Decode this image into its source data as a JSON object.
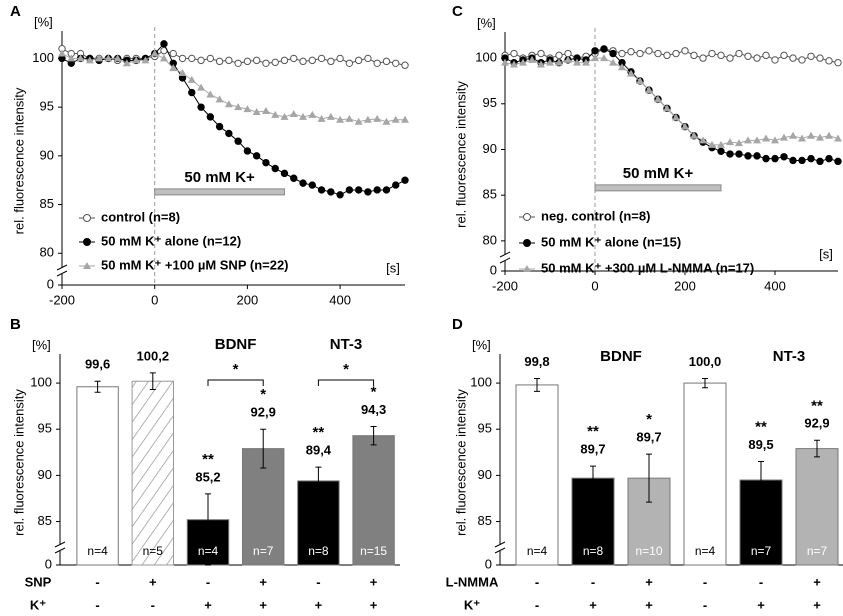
{
  "chart_data": [
    {
      "type": "line",
      "panel": "A",
      "y_label": "rel. fluorescence intensity",
      "y_unit": "[%]",
      "x_unit": "[s]",
      "x": [
        -200,
        -180,
        -160,
        -140,
        -120,
        -100,
        -80,
        -60,
        -40,
        -20,
        0,
        20,
        40,
        60,
        80,
        100,
        120,
        140,
        160,
        180,
        200,
        220,
        240,
        260,
        280,
        300,
        320,
        340,
        360,
        380,
        400,
        420,
        440,
        460,
        480,
        500,
        520,
        540
      ],
      "xlim": [
        -200,
        540
      ],
      "xticks": [
        -200,
        0,
        200,
        400
      ],
      "ylim": [
        79,
        102.2
      ],
      "yticks": [
        0,
        80,
        85,
        90,
        95,
        100
      ],
      "axis_break": true,
      "grid": false,
      "legend": "lower left",
      "stimulus": {
        "label": "50 mM K+",
        "start": 0,
        "end": 280,
        "level": 86.3
      },
      "series": [
        {
          "name": "control (n=8)",
          "color": "#555555",
          "marker": "circle-open",
          "values": [
            101,
            100.5,
            100.5,
            100,
            100,
            100,
            99.8,
            100,
            100,
            100,
            100.2,
            100.8,
            100.5,
            100,
            100,
            99.8,
            100,
            99.7,
            99.8,
            99.5,
            99.7,
            99.8,
            99.5,
            99.6,
            99.8,
            100,
            99.7,
            99.8,
            100,
            99.7,
            100,
            99.5,
            99.8,
            100,
            99.5,
            99.7,
            99.5,
            99.3
          ]
        },
        {
          "name": "50 mM K⁺ alone (n=12)",
          "color": "#000000",
          "marker": "circle",
          "values": [
            100,
            99.5,
            100,
            100,
            99.8,
            100,
            100,
            99.8,
            99.8,
            100,
            100.5,
            101.5,
            99.5,
            98,
            96.5,
            95,
            94,
            93,
            92.3,
            91.5,
            90.5,
            90,
            89.3,
            88.7,
            88.2,
            87.7,
            87.2,
            87,
            86.5,
            86.3,
            86,
            86.5,
            86.5,
            86.3,
            86.5,
            86.5,
            87,
            87.5
          ]
        },
        {
          "name": "50 mM K⁺ +100 µM SNP (n=22)",
          "color": "#a6a6a6",
          "marker": "triangle",
          "values": [
            100.5,
            100,
            100,
            99.8,
            100,
            100,
            100,
            99.5,
            99.8,
            99.8,
            100.5,
            100,
            99,
            98.5,
            97.8,
            97,
            96.3,
            95.8,
            95.3,
            95,
            94.8,
            94.5,
            94.6,
            94.2,
            94,
            94.3,
            94,
            94.2,
            93.8,
            94,
            93.7,
            93.8,
            93.5,
            93.7,
            93.8,
            93.5,
            93.7,
            93.7
          ]
        }
      ]
    },
    {
      "type": "line",
      "panel": "C",
      "y_label": "rel. fluorescence intensity",
      "y_unit": "[%]",
      "x_unit": "[s]",
      "x": [
        -200,
        -180,
        -160,
        -140,
        -120,
        -100,
        -80,
        -60,
        -40,
        -20,
        0,
        20,
        40,
        60,
        80,
        100,
        120,
        140,
        160,
        180,
        200,
        220,
        240,
        260,
        280,
        300,
        320,
        340,
        360,
        380,
        400,
        420,
        440,
        460,
        480,
        500,
        520,
        540
      ],
      "xlim": [
        -200,
        540
      ],
      "xticks": [
        -200,
        0,
        200,
        400
      ],
      "ylim": [
        79,
        102.2
      ],
      "yticks": [
        0,
        80,
        85,
        90,
        95,
        100
      ],
      "axis_break": true,
      "grid": false,
      "legend": "lower left",
      "stimulus": {
        "label": "50 mM K+",
        "start": 0,
        "end": 280,
        "level": 85.8
      },
      "series": [
        {
          "name": "neg. control (n=8)",
          "color": "#555555",
          "marker": "circle-open",
          "values": [
            100.3,
            100.5,
            100,
            100.3,
            100.5,
            100,
            100.3,
            100.5,
            100,
            100.2,
            100.5,
            101,
            100.8,
            100.5,
            100.7,
            100.5,
            100.8,
            100.5,
            100.3,
            100.5,
            100.8,
            100.3,
            100,
            100.5,
            100.3,
            100,
            100.5,
            100.2,
            100,
            100.3,
            99.8,
            100.3,
            100,
            99.8,
            100.2,
            100,
            99.7,
            99.5
          ]
        },
        {
          "name": "50 mM K⁺ alone (n=15)",
          "color": "#000000",
          "marker": "circle",
          "values": [
            100,
            99.5,
            99.8,
            100,
            99.5,
            99.8,
            99.5,
            99.8,
            100,
            99.8,
            100.8,
            101,
            100.5,
            99.5,
            98.5,
            97.5,
            96.5,
            95.5,
            94.5,
            93.5,
            92.5,
            91.5,
            90.8,
            90.2,
            89.8,
            89.5,
            89.5,
            89.3,
            89.3,
            89,
            89,
            89.2,
            88.8,
            88.8,
            89,
            88.7,
            89,
            88.7
          ]
        },
        {
          "name": "50 mM K⁺ +300 µM L-NMMA (n=17)",
          "color": "#a6a6a6",
          "marker": "triangle",
          "values": [
            99.5,
            99.3,
            99.5,
            99.8,
            99.3,
            99.5,
            99.5,
            99.8,
            99.5,
            99.5,
            100,
            100,
            99.5,
            99,
            98.3,
            97.5,
            96.5,
            95.5,
            94.5,
            93.5,
            92.5,
            91.5,
            91,
            90.5,
            90.5,
            90.8,
            90.7,
            91,
            91,
            91.2,
            91,
            91.3,
            91.5,
            91.2,
            91.5,
            91.3,
            91.5,
            91.2
          ]
        }
      ]
    },
    {
      "type": "bar",
      "panel": "B",
      "y_label": "rel. fluorescence intensity",
      "y_unit": "[%]",
      "values": [
        99.6,
        100.2,
        85.2,
        92.9,
        89.4,
        94.3
      ],
      "value_labels": [
        "99,6",
        "100,2",
        "85,2",
        "92,9",
        "89,4",
        "94,3"
      ],
      "errors": [
        0.6,
        0.9,
        2.8,
        2.1,
        1.5,
        1.0
      ],
      "colors": [
        "#ffffff",
        "#ffffff",
        "#000000",
        "#808080",
        "#000000",
        "#808080"
      ],
      "hatched_bars": [
        1
      ],
      "n_labels": [
        "n=4",
        "n=5",
        "n=4",
        "n=7",
        "n=8",
        "n=15"
      ],
      "ylim": [
        83,
        102.5
      ],
      "yticks": [
        0,
        85,
        90,
        95,
        100
      ],
      "axis_break": true,
      "grid": false,
      "stars": [
        {
          "bar": 2,
          "label": "**"
        },
        {
          "bar": 3,
          "label": "*"
        },
        {
          "bar": 4,
          "label": "**"
        },
        {
          "bar": 5,
          "label": "*"
        }
      ],
      "brackets": [
        {
          "bars": [
            2,
            3
          ],
          "label": "*"
        },
        {
          "bars": [
            4,
            5
          ],
          "label": "*"
        }
      ],
      "groups": [
        {
          "label": "BDNF",
          "bars": [
            2,
            3
          ]
        },
        {
          "label": "NT-3",
          "bars": [
            4,
            5
          ]
        }
      ],
      "conditions": [
        {
          "name": "SNP",
          "signs": [
            "-",
            "+",
            "-",
            "+",
            "-",
            "+"
          ]
        },
        {
          "name": "K⁺",
          "signs": [
            "-",
            "-",
            "+",
            "+",
            "+",
            "+"
          ]
        }
      ]
    },
    {
      "type": "bar",
      "panel": "D",
      "y_label": "rel. fluorescence intensity",
      "y_unit": "[%]",
      "values": [
        99.8,
        89.7,
        89.7,
        100.0,
        89.5,
        92.9
      ],
      "value_labels": [
        "99,8",
        "89,7",
        "89,7",
        "100,0",
        "89,5",
        "92,9"
      ],
      "errors": [
        0.7,
        1.3,
        2.6,
        0.5,
        2.0,
        0.9
      ],
      "colors": [
        "#ffffff",
        "#000000",
        "#b3b3b3",
        "#ffffff",
        "#000000",
        "#b3b3b3"
      ],
      "hatched_bars": [],
      "n_labels": [
        "n=4",
        "n=8",
        "n=10",
        "n=4",
        "n=7",
        "n=7"
      ],
      "ylim": [
        83,
        102.5
      ],
      "yticks": [
        0,
        85,
        90,
        95,
        100
      ],
      "axis_break": true,
      "grid": false,
      "stars": [
        {
          "bar": 1,
          "label": "**"
        },
        {
          "bar": 2,
          "label": "*"
        },
        {
          "bar": 4,
          "label": "**"
        },
        {
          "bar": 5,
          "label": "**"
        }
      ],
      "brackets": [],
      "groups": [
        {
          "label": "BDNF",
          "bars": [
            1,
            2
          ]
        },
        {
          "label": "NT-3",
          "bars": [
            4,
            5
          ]
        }
      ],
      "conditions": [
        {
          "name": "L-NMMA",
          "signs": [
            "-",
            "-",
            "+",
            "-",
            "-",
            "+"
          ]
        },
        {
          "name": "K⁺",
          "signs": [
            "-",
            "+",
            "+",
            "-",
            "+",
            "+"
          ]
        }
      ]
    }
  ]
}
